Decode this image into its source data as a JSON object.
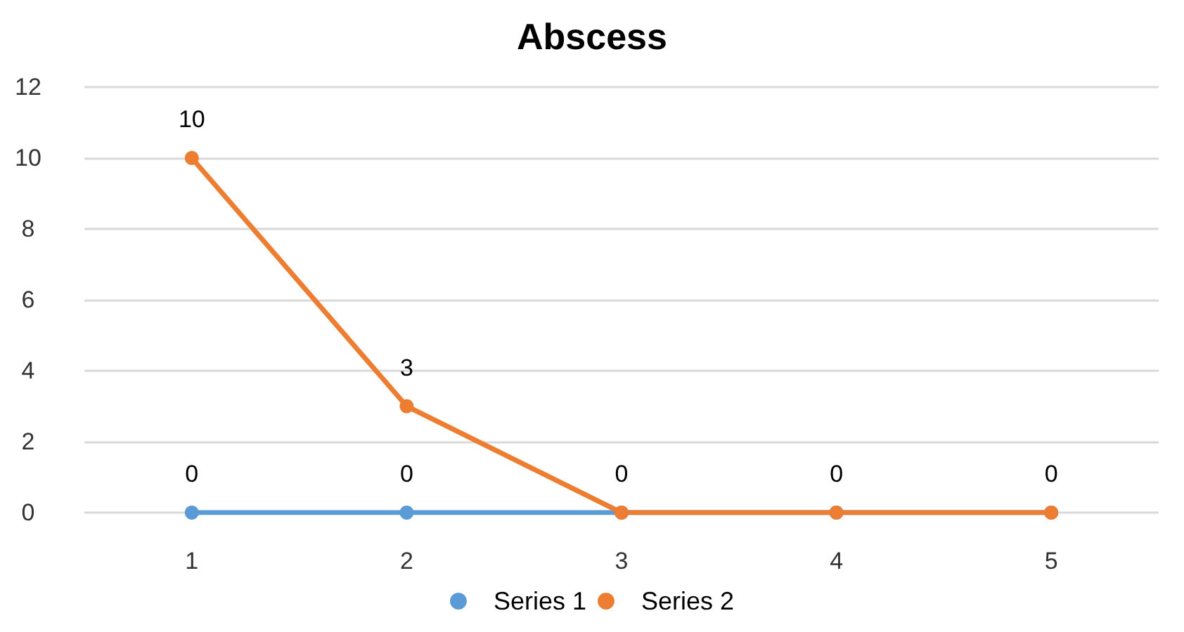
{
  "chart_data": {
    "type": "line",
    "title": "Abscess",
    "categories": [
      "1",
      "2",
      "3",
      "4",
      "5"
    ],
    "series": [
      {
        "name": "Series 1",
        "color": "#5b9bd5",
        "values": [
          0,
          0,
          0,
          0,
          0
        ],
        "value_labels": [
          "0",
          "0",
          null,
          null,
          null
        ]
      },
      {
        "name": "Series 2",
        "color": "#ed7d31",
        "values": [
          10,
          3,
          0,
          0,
          0
        ],
        "value_labels": [
          "10",
          "3",
          "0",
          "0",
          "0"
        ]
      }
    ],
    "ylim": [
      0,
      12
    ],
    "yticks": [
      0,
      2,
      4,
      6,
      8,
      10,
      12
    ],
    "grid": "y",
    "legend": "bottom",
    "marker": "circle",
    "line_style": "solid"
  }
}
